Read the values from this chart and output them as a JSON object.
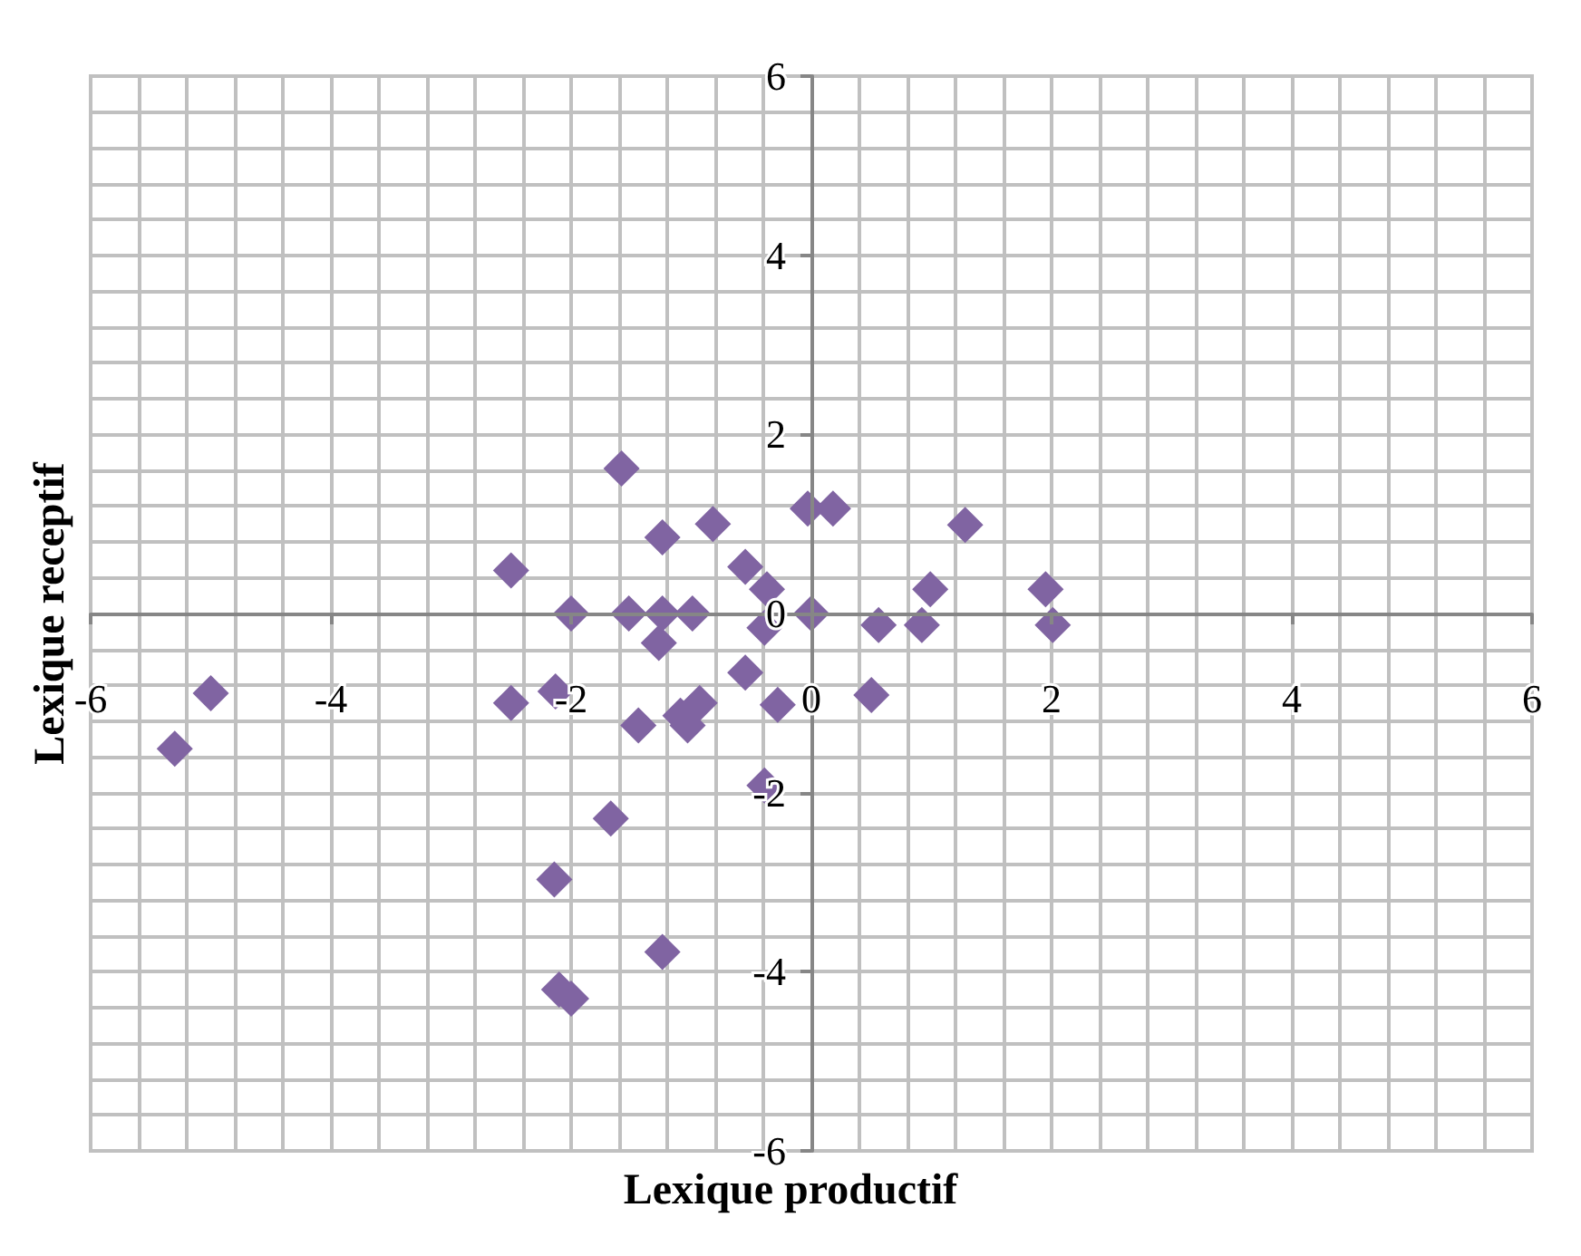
{
  "chart_data": {
    "type": "scatter",
    "xlabel": "Lexique productif",
    "ylabel": "Lexique receptif",
    "x": [
      -5.3,
      -5.0,
      -2.5,
      -2.5,
      -2.13,
      -2.0,
      -2.14,
      -2.1,
      -2.0,
      -1.67,
      -1.58,
      -1.52,
      -1.44,
      -1.27,
      -1.24,
      -1.24,
      -1.24,
      -1.09,
      -1.03,
      -0.99,
      -0.93,
      -0.82,
      -0.55,
      -0.37,
      -0.55,
      -0.39,
      -0.39,
      -0.28,
      -0.03,
      0.0,
      0.18,
      0.5,
      0.56,
      0.92,
      0.99,
      1.28,
      1.95,
      2.01
    ],
    "series": [
      {
        "color": "#8064a2",
        "values": [
          -1.51,
          -0.89,
          0.48,
          -1.0,
          -0.87,
          0.0,
          -2.97,
          -4.2,
          -4.3,
          -2.29,
          1.62,
          0.0,
          -1.25,
          -0.33,
          0.85,
          0.0,
          -3.78,
          -1.14,
          -1.25,
          0.0,
          -1.0,
          1.0,
          0.52,
          0.27,
          -0.66,
          -0.16,
          -1.92,
          -1.02,
          1.17,
          0.0,
          1.17,
          -0.91,
          -0.13,
          -0.13,
          0.27,
          0.99,
          0.27,
          -0.13
        ]
      }
    ],
    "xlim": [
      -6,
      6
    ],
    "ylim": [
      -6,
      6
    ],
    "xticks": [
      -6,
      -4,
      -2,
      0,
      2,
      4,
      6
    ],
    "yticks": [
      -6,
      -4,
      -2,
      0,
      2,
      4,
      6
    ],
    "grid": true,
    "marker": "diamond"
  }
}
